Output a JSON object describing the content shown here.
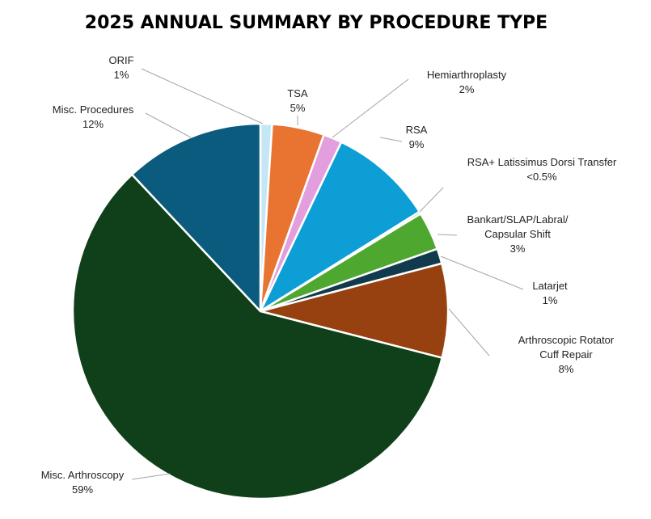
{
  "chart_data": {
    "type": "pie",
    "title": "2025 ANNUAL SUMMARY BY PROCEDURE TYPE",
    "start_angle_deg": 0,
    "direction": "clockwise",
    "slices": [
      {
        "name": "ORIF",
        "display": "1%",
        "value": 1.0,
        "color": "#c5e6f5",
        "label_lines": [
          "ORIF",
          "1%"
        ]
      },
      {
        "name": "TSA",
        "display": "5%",
        "value": 4.5,
        "color": "#e97432",
        "label_lines": [
          "TSA",
          "5%"
        ]
      },
      {
        "name": "Hemiarthroplasty",
        "display": "2%",
        "value": 1.6,
        "color": "#e39ede",
        "label_lines": [
          "Hemiarthroplasty",
          "2%"
        ]
      },
      {
        "name": "RSA",
        "display": "9%",
        "value": 9.0,
        "color": "#0e9ed6",
        "label_lines": [
          "RSA",
          "9%"
        ]
      },
      {
        "name": "RSA+ Latissimus Dorsi Transfer",
        "display": "<0.5%",
        "value": 0.2,
        "color": "#4ea72e",
        "label_lines": [
          "RSA+ Latissimus Dorsi Transfer",
          "<0.5%"
        ]
      },
      {
        "name": "Bankart/SLAP/Labral/Capsular Shift",
        "display": "3%",
        "value": 3.3,
        "color": "#4ea72e",
        "label_lines": [
          "Bankart/SLAP/Labral/",
          "Capsular Shift",
          "3%"
        ]
      },
      {
        "name": "Latarjet",
        "display": "1%",
        "value": 1.3,
        "color": "#113a4d",
        "label_lines": [
          "Latarjet",
          "1%"
        ]
      },
      {
        "name": "Arthroscopic Rotator Cuff Repair",
        "display": "8%",
        "value": 8.1,
        "color": "#974110",
        "label_lines": [
          "Arthroscopic Rotator",
          "Cuff Repair",
          "8%"
        ]
      },
      {
        "name": "Misc. Arthroscopy",
        "display": "59%",
        "value": 59.0,
        "color": "#104019",
        "label_lines": [
          "Misc. Arthroscopy",
          "59%"
        ]
      },
      {
        "name": "Misc. Procedures",
        "display": "12%",
        "value": 12.0,
        "color": "#0b5b7e",
        "label_lines": [
          "Misc. Procedures",
          "12%"
        ]
      }
    ]
  }
}
